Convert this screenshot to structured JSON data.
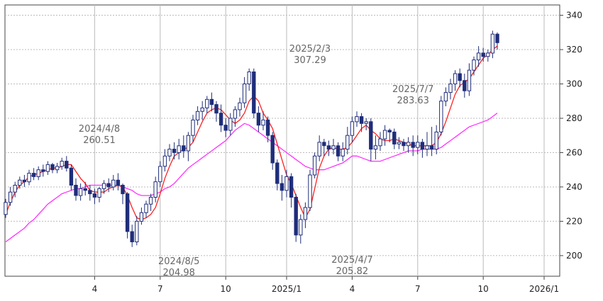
{
  "chart_data": {
    "type": "candlestick",
    "y_ticks": [
      200,
      220,
      240,
      260,
      280,
      300,
      320,
      340
    ],
    "ylim": [
      188,
      346
    ],
    "grid": true,
    "x_ticks": [
      {
        "label": "4",
        "week": 19
      },
      {
        "label": "7",
        "week": 33
      },
      {
        "label": "10",
        "week": 47
      },
      {
        "label": "2025/1",
        "week": 60
      },
      {
        "label": "4",
        "week": 74
      },
      {
        "label": "7",
        "week": 88
      },
      {
        "label": "10",
        "week": 102
      },
      {
        "label": "2026/1",
        "week": 115
      }
    ],
    "annotations": [
      {
        "date": "2024/4/8",
        "value": "260.51",
        "week": 20,
        "position": "above"
      },
      {
        "date": "2024/8/5",
        "value": "204.98",
        "week": 37,
        "position": "below"
      },
      {
        "date": "2025/2/3",
        "value": "307.29",
        "week": 65,
        "position": "above"
      },
      {
        "date": "2025/4/7",
        "value": "205.82",
        "week": 74,
        "position": "below"
      },
      {
        "date": "2025/7/7",
        "value": "283.63",
        "week": 87,
        "position": "above"
      }
    ],
    "series_colors": {
      "up": "#1f2d7a",
      "down": "#1f2d7a",
      "short_ma": "#ff2020",
      "long_ma": "#ff33ff"
    },
    "candles": [
      [
        224,
        231,
        222,
        233
      ],
      [
        231,
        237,
        229,
        240
      ],
      [
        237,
        241,
        234,
        243
      ],
      [
        241,
        244,
        239,
        246
      ],
      [
        244,
        243,
        240,
        247
      ],
      [
        243,
        248,
        241,
        250
      ],
      [
        248,
        246,
        244,
        251
      ],
      [
        246,
        250,
        244,
        252
      ],
      [
        250,
        249,
        246,
        253
      ],
      [
        249,
        253,
        247,
        255
      ],
      [
        253,
        250,
        248,
        254
      ],
      [
        250,
        252,
        248,
        254
      ],
      [
        252,
        255,
        250,
        257
      ],
      [
        255,
        251,
        249,
        258
      ],
      [
        251,
        241,
        238,
        253
      ],
      [
        241,
        235,
        232,
        245
      ],
      [
        235,
        239,
        232,
        242
      ],
      [
        239,
        238,
        235,
        243
      ],
      [
        238,
        236,
        232,
        241
      ],
      [
        236,
        234,
        230,
        239
      ],
      [
        234,
        239,
        231,
        240
      ],
      [
        239,
        242,
        236,
        244
      ],
      [
        242,
        240,
        237,
        245
      ],
      [
        240,
        244,
        238,
        247
      ],
      [
        244,
        241,
        238,
        248
      ],
      [
        241,
        236,
        230,
        242
      ],
      [
        236,
        214,
        210,
        237
      ],
      [
        214,
        208,
        205,
        218
      ],
      [
        208,
        220,
        206,
        223
      ],
      [
        220,
        225,
        218,
        228
      ],
      [
        225,
        230,
        222,
        232
      ],
      [
        230,
        234,
        226,
        236
      ],
      [
        234,
        243,
        231,
        246
      ],
      [
        243,
        252,
        240,
        255
      ],
      [
        252,
        258,
        249,
        262
      ],
      [
        258,
        262,
        255,
        265
      ],
      [
        262,
        260,
        256,
        266
      ],
      [
        260,
        264,
        256,
        268
      ],
      [
        264,
        261,
        257,
        270
      ],
      [
        261,
        270,
        255,
        272
      ],
      [
        270,
        279,
        266,
        282
      ],
      [
        279,
        284,
        276,
        287
      ],
      [
        284,
        286,
        279,
        290
      ],
      [
        286,
        291,
        283,
        293
      ],
      [
        291,
        288,
        284,
        295
      ],
      [
        288,
        283,
        278,
        290
      ],
      [
        283,
        276,
        272,
        288
      ],
      [
        276,
        273,
        269,
        280
      ],
      [
        273,
        280,
        270,
        283
      ],
      [
        280,
        285,
        275,
        287
      ],
      [
        285,
        289,
        281,
        292
      ],
      [
        289,
        300,
        286,
        304
      ],
      [
        300,
        307,
        296,
        309
      ],
      [
        307,
        283,
        280,
        309
      ],
      [
        283,
        276,
        272,
        287
      ],
      [
        276,
        279,
        273,
        284
      ],
      [
        279,
        270,
        266,
        281
      ],
      [
        270,
        254,
        250,
        272
      ],
      [
        254,
        242,
        238,
        256
      ],
      [
        242,
        238,
        232,
        247
      ],
      [
        238,
        246,
        234,
        250
      ],
      [
        246,
        234,
        228,
        248
      ],
      [
        234,
        212,
        208,
        236
      ],
      [
        212,
        221,
        207,
        224
      ],
      [
        221,
        228,
        216,
        231
      ],
      [
        228,
        247,
        226,
        250
      ],
      [
        247,
        258,
        245,
        260
      ],
      [
        258,
        266,
        255,
        270
      ],
      [
        266,
        264,
        258,
        268
      ],
      [
        264,
        262,
        258,
        267
      ],
      [
        262,
        264,
        259,
        268
      ],
      [
        264,
        258,
        255,
        266
      ],
      [
        258,
        262,
        255,
        266
      ],
      [
        262,
        270,
        259,
        275
      ],
      [
        270,
        278,
        266,
        281
      ],
      [
        278,
        281,
        275,
        284
      ],
      [
        281,
        277,
        272,
        283
      ],
      [
        277,
        278,
        273,
        280
      ],
      [
        278,
        262,
        255,
        280
      ],
      [
        262,
        264,
        256,
        270
      ],
      [
        264,
        268,
        261,
        272
      ],
      [
        268,
        273,
        264,
        276
      ],
      [
        273,
        272,
        266,
        274
      ],
      [
        272,
        265,
        262,
        274
      ],
      [
        265,
        266,
        262,
        269
      ],
      [
        266,
        264,
        261,
        268
      ],
      [
        264,
        266,
        260,
        269
      ],
      [
        266,
        263,
        258,
        270
      ],
      [
        263,
        266,
        259,
        270
      ],
      [
        266,
        262,
        257,
        268
      ],
      [
        262,
        264,
        258,
        272
      ],
      [
        264,
        262,
        258,
        275
      ],
      [
        262,
        272,
        259,
        276
      ],
      [
        272,
        290,
        270,
        293
      ],
      [
        290,
        295,
        287,
        298
      ],
      [
        295,
        300,
        291,
        303
      ],
      [
        300,
        306,
        296,
        308
      ],
      [
        306,
        302,
        298,
        309
      ],
      [
        302,
        296,
        292,
        306
      ],
      [
        296,
        308,
        293,
        312
      ],
      [
        308,
        314,
        305,
        316
      ],
      [
        314,
        318,
        310,
        322
      ],
      [
        318,
        316,
        313,
        321
      ],
      [
        316,
        318,
        313,
        320
      ],
      [
        318,
        329,
        315,
        331
      ],
      [
        329,
        324,
        320,
        330
      ]
    ],
    "short_ma": [
      224,
      231,
      237,
      241,
      243,
      246,
      247,
      248,
      249,
      250,
      251,
      251,
      252,
      253,
      253,
      249,
      245,
      242,
      238,
      237,
      237,
      237,
      239,
      240,
      241,
      240,
      235,
      228,
      222,
      221,
      222,
      224,
      228,
      236,
      245,
      252,
      258,
      260,
      262,
      263,
      266,
      272,
      278,
      283,
      285,
      286,
      285,
      282,
      279,
      277,
      279,
      283,
      290,
      293,
      290,
      283,
      279,
      274,
      265,
      256,
      247,
      242,
      235,
      228,
      222,
      227,
      239,
      251,
      258,
      262,
      263,
      262,
      262,
      263,
      266,
      270,
      274,
      276,
      273,
      271,
      268,
      267,
      267,
      268,
      267,
      266,
      265,
      264,
      264,
      264,
      264,
      264,
      266,
      271,
      278,
      286,
      294,
      299,
      301,
      303,
      307,
      311,
      315,
      317,
      320,
      322
    ],
    "long_ma": [
      208,
      210,
      212,
      214,
      216,
      219,
      221,
      224,
      227,
      230,
      232,
      234,
      236,
      237,
      238,
      239,
      239,
      240,
      241,
      241,
      241,
      241,
      241,
      241,
      241,
      240,
      239,
      238,
      236,
      235,
      235,
      235,
      236,
      237,
      239,
      240,
      242,
      245,
      248,
      251,
      253,
      255,
      257,
      259,
      261,
      263,
      265,
      267,
      270,
      273,
      275,
      277,
      276,
      274,
      272,
      270,
      268,
      266,
      264,
      262,
      260,
      258,
      256,
      254,
      252,
      251,
      250,
      250,
      250,
      251,
      252,
      253,
      254,
      256,
      258,
      258,
      257,
      256,
      255,
      255,
      255,
      256,
      257,
      258,
      259,
      260,
      261,
      261,
      261,
      262,
      262,
      262,
      262,
      263,
      265,
      267,
      269,
      271,
      273,
      275,
      276,
      277,
      278,
      279,
      281,
      283
    ]
  }
}
